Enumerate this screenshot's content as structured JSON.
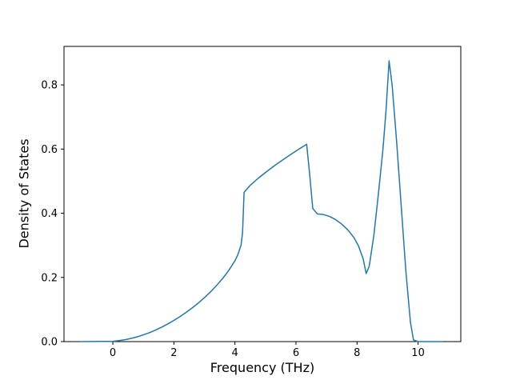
{
  "chart_data": {
    "type": "line",
    "title": "",
    "xlabel": "Frequency (THz)",
    "ylabel": "Density of States",
    "xlim": [
      -1.6,
      11.4
    ],
    "ylim": [
      0.0,
      0.92
    ],
    "x_ticks": [
      0,
      2,
      4,
      6,
      8,
      10
    ],
    "y_ticks": [
      0.0,
      0.2,
      0.4,
      0.6,
      0.8
    ],
    "grid": false,
    "legend": "none",
    "line_color": "#1f77b4",
    "line_width": 1.5,
    "series": [
      {
        "name": "Density of States",
        "x": [
          -1.05,
          0.0,
          0.2,
          0.4,
          0.6,
          0.8,
          1.0,
          1.2,
          1.4,
          1.6,
          1.8,
          2.0,
          2.2,
          2.4,
          2.6,
          2.8,
          3.0,
          3.2,
          3.4,
          3.6,
          3.8,
          4.0,
          4.1,
          4.2,
          4.25,
          4.3,
          4.5,
          4.75,
          5.0,
          5.25,
          5.5,
          5.75,
          6.0,
          6.2,
          6.35,
          6.45,
          6.55,
          6.7,
          6.9,
          7.1,
          7.3,
          7.5,
          7.7,
          7.9,
          8.05,
          8.2,
          8.3,
          8.4,
          8.55,
          8.7,
          8.85,
          8.95,
          9.05,
          9.15,
          9.3,
          9.45,
          9.6,
          9.75,
          9.85,
          10.0,
          10.4,
          10.8
        ],
        "y": [
          0.0,
          0.001,
          0.003,
          0.006,
          0.01,
          0.015,
          0.021,
          0.028,
          0.036,
          0.045,
          0.055,
          0.066,
          0.078,
          0.091,
          0.105,
          0.12,
          0.137,
          0.155,
          0.175,
          0.197,
          0.222,
          0.252,
          0.272,
          0.3,
          0.34,
          0.465,
          0.487,
          0.508,
          0.527,
          0.545,
          0.562,
          0.578,
          0.594,
          0.606,
          0.615,
          0.52,
          0.415,
          0.398,
          0.396,
          0.39,
          0.38,
          0.366,
          0.348,
          0.324,
          0.298,
          0.258,
          0.212,
          0.235,
          0.33,
          0.46,
          0.6,
          0.72,
          0.875,
          0.8,
          0.62,
          0.42,
          0.22,
          0.06,
          0.005,
          0.0,
          0.0,
          0.0
        ]
      }
    ]
  }
}
